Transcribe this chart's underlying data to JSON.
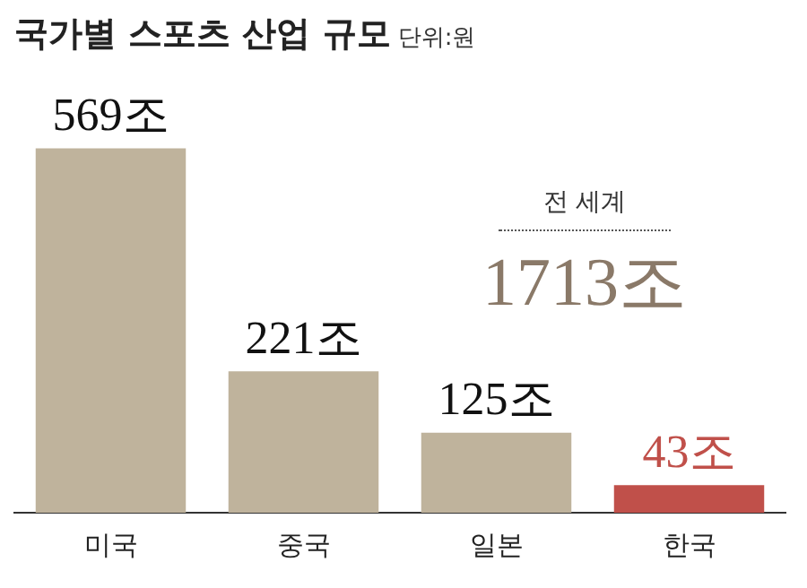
{
  "chart_data": {
    "type": "bar",
    "title": "국가별 스포츠 산업 규모",
    "subtitle": "단위:원",
    "categories": [
      "미국",
      "중국",
      "일본",
      "한국"
    ],
    "values": [
      569,
      221,
      125,
      43
    ],
    "colors": [
      "#bfb39c",
      "#bfb39c",
      "#bfb39c",
      "#c0504a"
    ],
    "value_labels": [
      "569조",
      "221조",
      "125조",
      "43조"
    ],
    "annotations": [
      "전 세계",
      "1713조"
    ],
    "grid": false,
    "legend": false,
    "tick_labels": "x"
  }
}
